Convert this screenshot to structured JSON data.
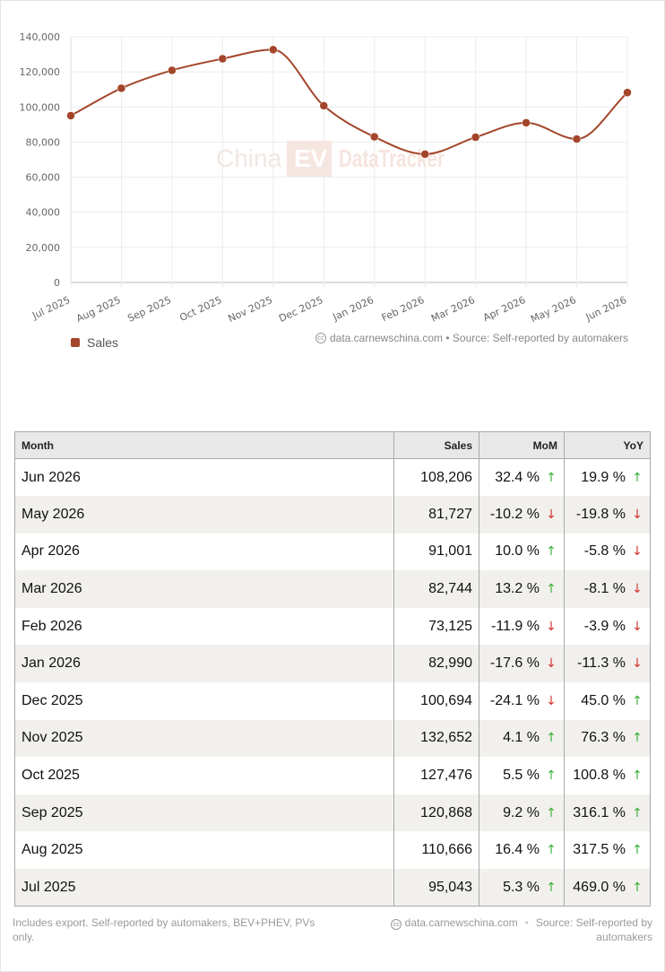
{
  "chart_data": {
    "type": "line",
    "categories": [
      "Jul 2025",
      "Aug 2025",
      "Sep 2025",
      "Oct 2025",
      "Nov 2025",
      "Dec 2025",
      "Jan 2026",
      "Feb 2026",
      "Mar 2026",
      "Apr 2026",
      "May 2026",
      "Jun 2026"
    ],
    "series": [
      {
        "name": "Sales",
        "values": [
          95043,
          110666,
          120868,
          127476,
          132652,
          100694,
          82990,
          73125,
          82744,
          91001,
          81727,
          108206
        ]
      }
    ],
    "ylim": [
      0,
      140000
    ],
    "yticks": [
      "0",
      "20,000",
      "40,000",
      "60,000",
      "80,000",
      "100,000",
      "120,000",
      "140,000"
    ],
    "grid": true,
    "legend": "bottom-left",
    "color": "#a3452a"
  },
  "watermark": {
    "part1": "China",
    "part2": "EV",
    "part3": "DataTracker"
  },
  "chart_source": "data.carnewschina.com • Source: Self-reported by automakers",
  "table": {
    "headers": {
      "month": "Month",
      "sales": "Sales",
      "mom": "MoM",
      "yoy": "YoY"
    },
    "rows": [
      {
        "month": "Jun 2026",
        "sales": "108,206",
        "mom": "32.4 %",
        "mom_dir": "up",
        "yoy": "19.9 %",
        "yoy_dir": "up"
      },
      {
        "month": "May 2026",
        "sales": "81,727",
        "mom": "-10.2 %",
        "mom_dir": "down",
        "yoy": "-19.8 %",
        "yoy_dir": "down"
      },
      {
        "month": "Apr 2026",
        "sales": "91,001",
        "mom": "10.0 %",
        "mom_dir": "up",
        "yoy": "-5.8 %",
        "yoy_dir": "down"
      },
      {
        "month": "Mar 2026",
        "sales": "82,744",
        "mom": "13.2 %",
        "mom_dir": "up",
        "yoy": "-8.1 %",
        "yoy_dir": "down"
      },
      {
        "month": "Feb 2026",
        "sales": "73,125",
        "mom": "-11.9 %",
        "mom_dir": "down",
        "yoy": "-3.9 %",
        "yoy_dir": "down"
      },
      {
        "month": "Jan 2026",
        "sales": "82,990",
        "mom": "-17.6 %",
        "mom_dir": "down",
        "yoy": "-11.3 %",
        "yoy_dir": "down"
      },
      {
        "month": "Dec 2025",
        "sales": "100,694",
        "mom": "-24.1 %",
        "mom_dir": "down",
        "yoy": "45.0 %",
        "yoy_dir": "up"
      },
      {
        "month": "Nov 2025",
        "sales": "132,652",
        "mom": "4.1 %",
        "mom_dir": "up",
        "yoy": "76.3 %",
        "yoy_dir": "up"
      },
      {
        "month": "Oct 2025",
        "sales": "127,476",
        "mom": "5.5 %",
        "mom_dir": "up",
        "yoy": "100.8 %",
        "yoy_dir": "up"
      },
      {
        "month": "Sep 2025",
        "sales": "120,868",
        "mom": "9.2 %",
        "mom_dir": "up",
        "yoy": "316.1 %",
        "yoy_dir": "up"
      },
      {
        "month": "Aug 2025",
        "sales": "110,666",
        "mom": "16.4 %",
        "mom_dir": "up",
        "yoy": "317.5 %",
        "yoy_dir": "up"
      },
      {
        "month": "Jul 2025",
        "sales": "95,043",
        "mom": "5.3 %",
        "mom_dir": "up",
        "yoy": "469.0 %",
        "yoy_dir": "up"
      }
    ]
  },
  "footer": {
    "note": "Includes export. Self-reported by automakers, BEV+PHEV, PVs only.",
    "site": "data.carnewschina.com",
    "source": "Source: Self-reported by automakers"
  },
  "icons": {
    "cc": "creative-commons-icon",
    "up": "arrow-up-icon",
    "down": "arrow-down-icon"
  },
  "colors": {
    "up": "#3bb13b",
    "down": "#d33333"
  }
}
